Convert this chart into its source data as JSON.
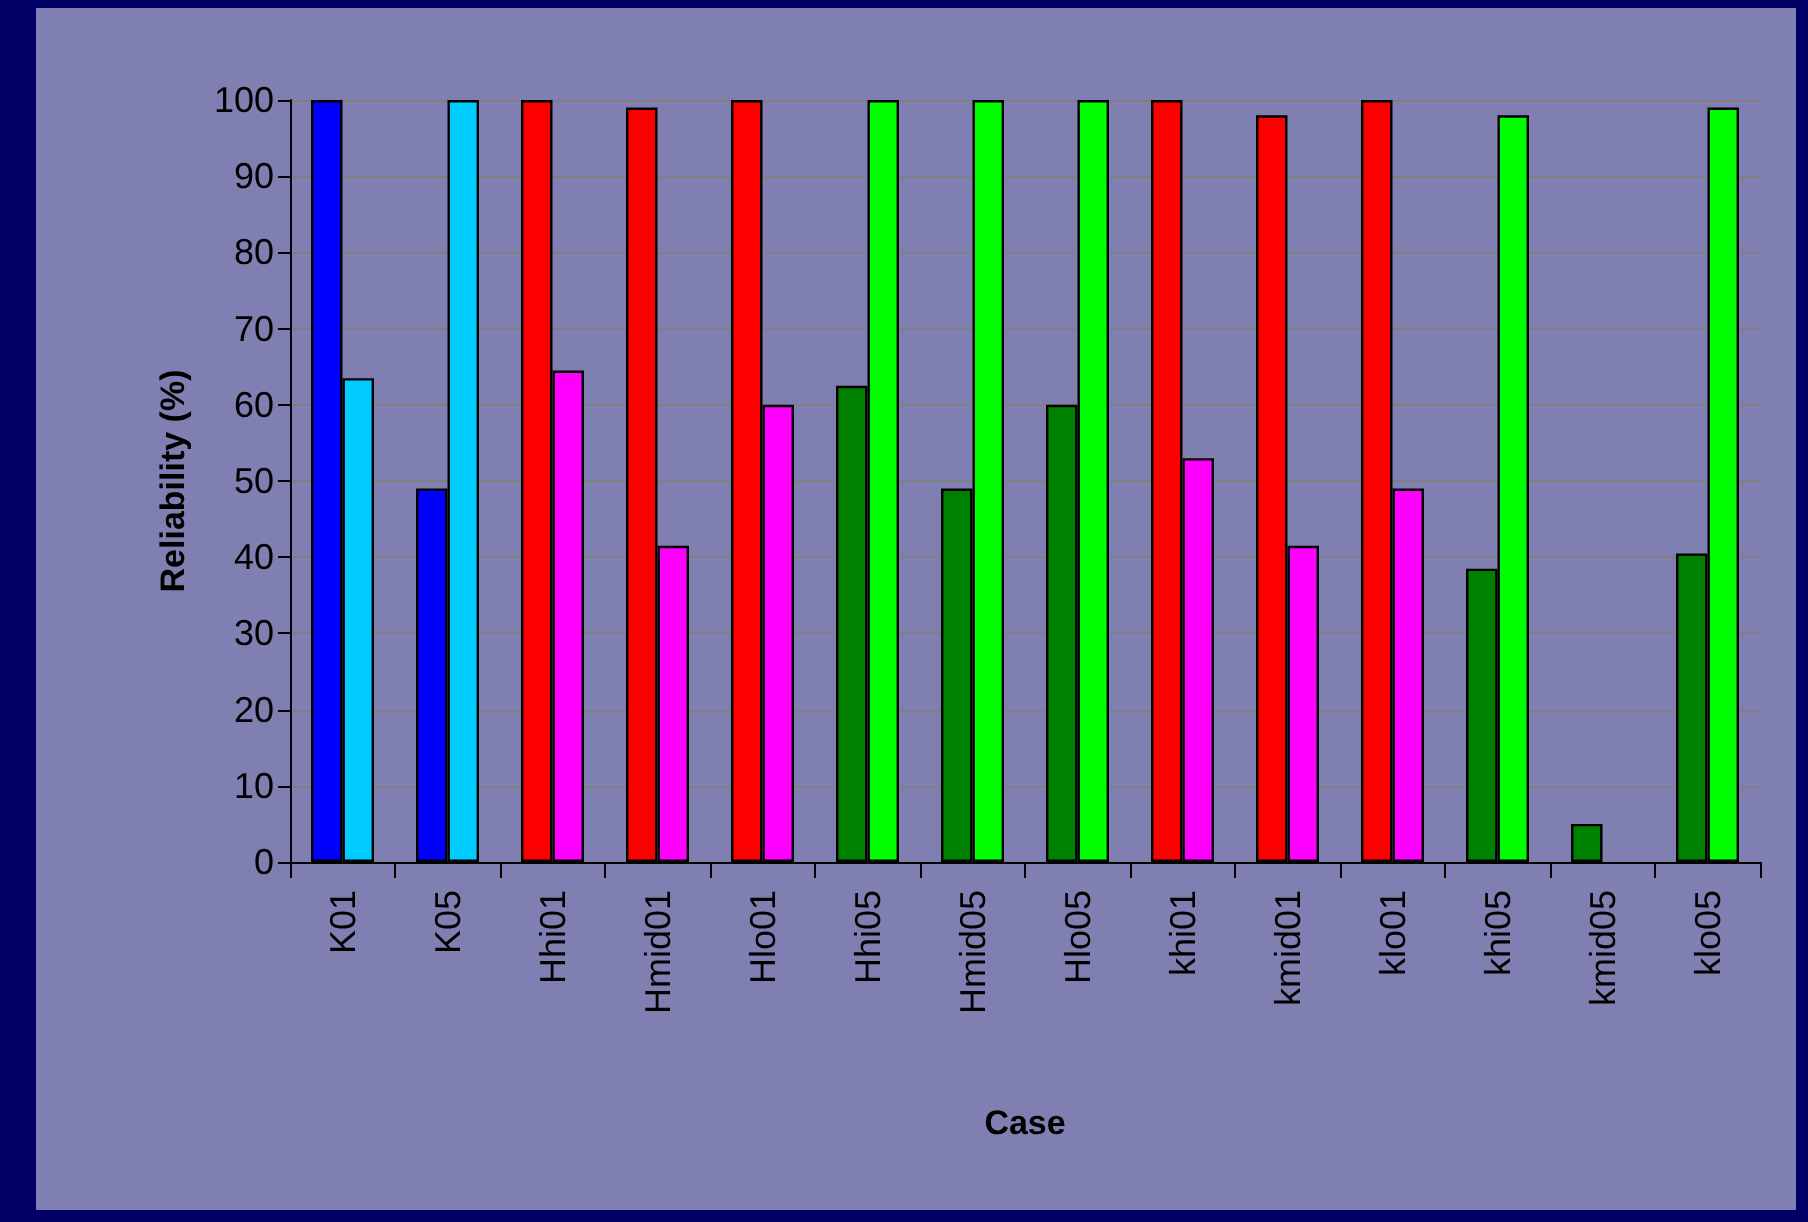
{
  "chart_data": {
    "type": "bar",
    "xlabel": "Case",
    "ylabel": "Reliability (%)",
    "categories": [
      "K01",
      "K05",
      "Hhi01",
      "Hmid01",
      "Hlo01",
      "Hhi05",
      "Hmid05",
      "Hlo05",
      "khi01",
      "kmid01",
      "klo01",
      "khi05",
      "kmid05",
      "klo05"
    ],
    "series": [
      {
        "values": [
          100,
          49,
          100,
          99,
          100,
          62.5,
          49,
          60,
          100,
          98,
          100,
          38.5,
          5,
          40.5
        ],
        "colors": [
          "#0000ff",
          "#0000ff",
          "#ff0000",
          "#ff0000",
          "#ff0000",
          "#008000",
          "#008000",
          "#008000",
          "#ff0000",
          "#ff0000",
          "#ff0000",
          "#008000",
          "#008000",
          "#008000"
        ]
      },
      {
        "values": [
          63.5,
          100,
          64.5,
          41.5,
          60,
          100,
          100,
          100,
          53,
          41.5,
          49,
          98,
          null,
          99
        ],
        "colors": [
          "#00ccff",
          "#00ccff",
          "#ff00ff",
          "#ff00ff",
          "#ff00ff",
          "#00ff00",
          "#00ff00",
          "#00ff00",
          "#ff00ff",
          "#ff00ff",
          "#ff00ff",
          "#00ff00",
          "#00ff00",
          "#00ff00"
        ]
      }
    ],
    "ylim": [
      0,
      100
    ],
    "yticks": [
      0,
      10,
      20,
      30,
      40,
      50,
      60,
      70,
      80,
      90,
      100
    ],
    "grid": "y"
  }
}
